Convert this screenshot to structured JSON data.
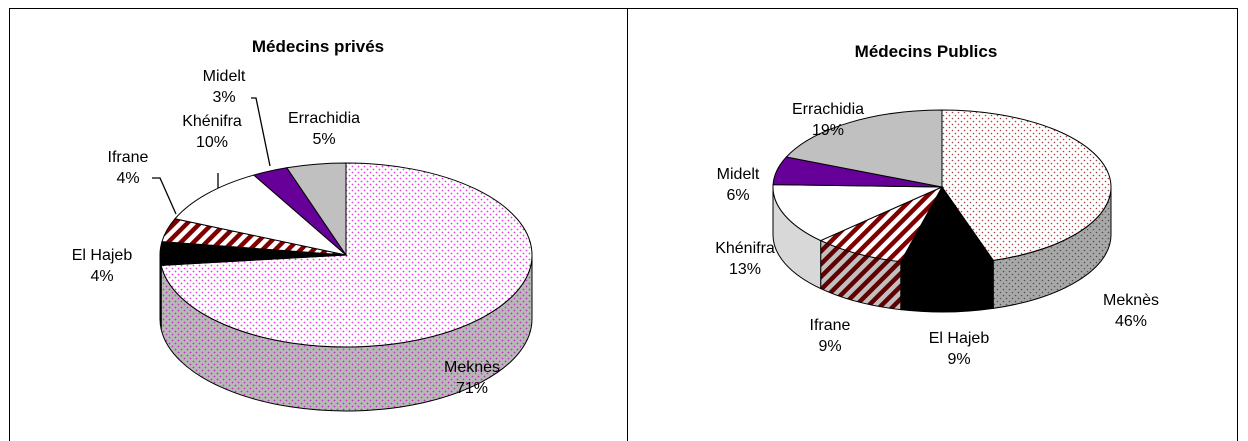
{
  "chart_data": [
    {
      "type": "pie",
      "title": "Médecins privés",
      "categories": [
        "Meknès",
        "El Hajeb",
        "Ifrane",
        "Khénifra",
        "Midelt",
        "Errachidia"
      ],
      "values": [
        71,
        4,
        4,
        10,
        3,
        5
      ],
      "labels": [
        "71%",
        "4%",
        "4%",
        "10%",
        "3%",
        "5%"
      ],
      "colors": [
        "#e040e0",
        "#000000",
        "#800000",
        "#ffffff",
        "#660099",
        "#c0c0c0"
      ]
    },
    {
      "type": "pie",
      "title": "Médecins Publics",
      "categories": [
        "Meknès",
        "El Hajeb",
        "Ifrane",
        "Khénifra",
        "Midelt",
        "Errachidia"
      ],
      "values": [
        46,
        9,
        9,
        13,
        6,
        19
      ],
      "labels": [
        "46%",
        "9%",
        "9%",
        "13%",
        "6%",
        "19%"
      ],
      "colors": [
        "#b04040",
        "#000000",
        "#800000",
        "#ffffff",
        "#660099",
        "#c0c0c0"
      ]
    }
  ]
}
